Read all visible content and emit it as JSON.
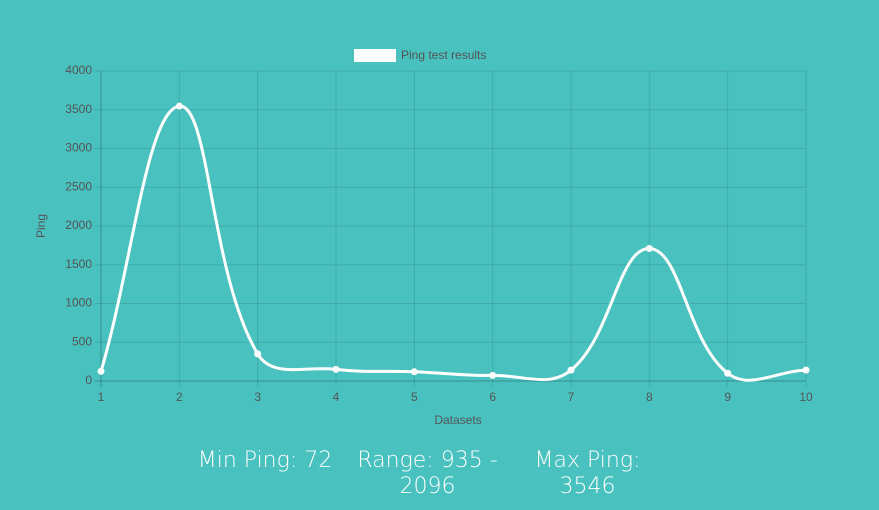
{
  "chart_data": {
    "type": "line",
    "x": [
      1,
      2,
      3,
      4,
      5,
      6,
      7,
      8,
      9,
      10
    ],
    "xlim": [
      1,
      10
    ],
    "xticks": [
      1,
      2,
      3,
      4,
      5,
      6,
      7,
      8,
      9,
      10
    ],
    "series": [
      {
        "name": "Ping test results",
        "color": "#ffffff",
        "values": [
          125,
          3546,
          350,
          150,
          120,
          72,
          140,
          1710,
          100,
          140
        ]
      }
    ],
    "ylim": [
      0,
      4000
    ],
    "yticks": [
      0,
      500,
      1000,
      1500,
      2000,
      2500,
      3000,
      3500,
      4000
    ],
    "x_label": "Datasets",
    "y_label": "Ping",
    "grid": true,
    "legend": "top",
    "annotations": [
      "Min Ping: 72",
      "Range: 935 - 2096",
      "Max Ping: 3546"
    ]
  }
}
